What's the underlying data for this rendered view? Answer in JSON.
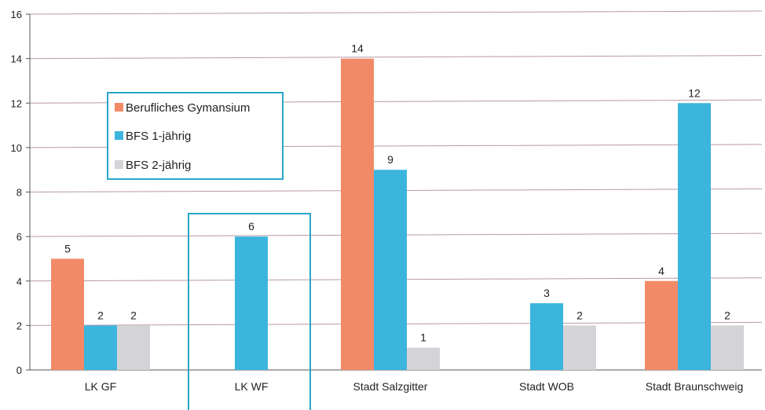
{
  "chart_data": {
    "type": "bar",
    "categories": [
      "LK GF",
      "LK WF",
      "Stadt Salzgitter",
      "Stadt WOB",
      "Stadt Braunschweig"
    ],
    "series": [
      {
        "name": "Berufliches Gymansium",
        "color": "#f28a68",
        "values": [
          5,
          null,
          14,
          null,
          4
        ],
        "labels": [
          "5",
          "",
          "14",
          "",
          "4"
        ]
      },
      {
        "name": "BFS 1-jährig",
        "color": "#3bb5dd",
        "values": [
          2,
          6,
          9,
          3,
          12
        ],
        "labels": [
          "2",
          "6",
          "9",
          "3",
          "12"
        ]
      },
      {
        "name": "BFS 2-jährig",
        "color": "#d4d4d8",
        "values": [
          2,
          null,
          1,
          2,
          2
        ],
        "labels": [
          "2",
          "",
          "1",
          "2",
          "2"
        ]
      }
    ],
    "y_ticks": [
      "0",
      "2",
      "4",
      "6",
      "8",
      "10",
      "12",
      "14",
      "16"
    ],
    "ylim": [
      0,
      16
    ],
    "grid": true,
    "legend_position": "upper-left, framed",
    "highlight_category": "LK WF",
    "highlight_color": "#2aa6c8",
    "gridline_color": "#b89aa8"
  }
}
